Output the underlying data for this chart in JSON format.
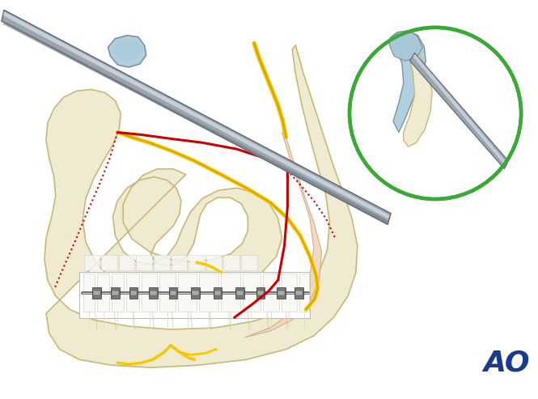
{
  "bg_color": "#ffffff",
  "bone_color": "#f0ead0",
  "bone_edge_color": "#c8b878",
  "nerve_color": "#f5c800",
  "nerve_dark": "#d4a000",
  "cut_color": "#cc0000",
  "instrument_color": "#9aa5b0",
  "instrument_edge": "#5a6570",
  "instrument_highlight": "#d0d8e0",
  "instrument_shadow": "#707880",
  "green_circle_color": "#3aaa35",
  "ao_color": "#1a3a8a",
  "ramus_skin_color": "#f0d8b8",
  "ramus_skin_edge": "#d0a888",
  "condyle_blue": "#b0d0e0",
  "condyle_blue_dark": "#a8c8d8",
  "condyle_edge": "#8090a0",
  "inner_bone": "#e8ddb8"
}
